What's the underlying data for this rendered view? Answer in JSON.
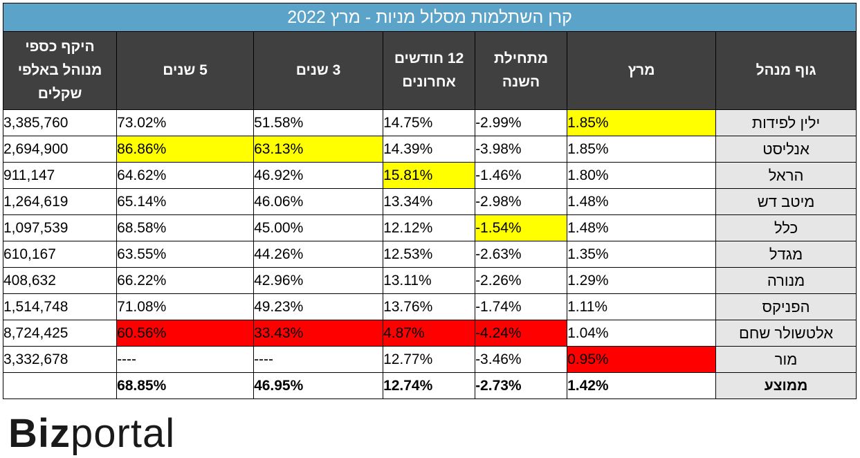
{
  "table": {
    "title": "קרן השתלמות מסלול מניות - מרץ 2022",
    "headers": {
      "manager": "גוף מנהל",
      "march": "מרץ",
      "ytd": "מתחילת השנה",
      "m12": "12 חודשים אחרונים",
      "y3": "3 שנים",
      "y5": "5 שנים",
      "aum": "היקף כספי מנוהל באלפי שקלים"
    },
    "rows": [
      {
        "manager": "ילין לפידות",
        "march": "1.85%",
        "ytd": "-2.99%",
        "m12": "14.75%",
        "y3": "51.58%",
        "y5": "73.02%",
        "aum": "3,385,760"
      },
      {
        "manager": "אנליסט",
        "march": "1.85%",
        "ytd": "-3.98%",
        "m12": "14.39%",
        "y3": "63.13%",
        "y5": "86.86%",
        "aum": "2,694,900"
      },
      {
        "manager": "הראל",
        "march": "1.80%",
        "ytd": "-1.46%",
        "m12": "15.81%",
        "y3": "46.92%",
        "y5": "64.62%",
        "aum": "911,147"
      },
      {
        "manager": "מיטב דש",
        "march": "1.48%",
        "ytd": "-2.98%",
        "m12": "13.34%",
        "y3": "46.06%",
        "y5": "65.14%",
        "aum": "1,264,619"
      },
      {
        "manager": "כלל",
        "march": "1.48%",
        "ytd": "-1.54%",
        "m12": "12.12%",
        "y3": "45.00%",
        "y5": "68.58%",
        "aum": "1,097,539"
      },
      {
        "manager": "מגדל",
        "march": "1.35%",
        "ytd": "-2.63%",
        "m12": "12.53%",
        "y3": "44.26%",
        "y5": "63.55%",
        "aum": "610,167"
      },
      {
        "manager": "מנורה",
        "march": "1.29%",
        "ytd": "-2.26%",
        "m12": "13.11%",
        "y3": "42.96%",
        "y5": "66.22%",
        "aum": "408,632"
      },
      {
        "manager": "הפניקס",
        "march": "1.11%",
        "ytd": "-1.74%",
        "m12": "13.76%",
        "y3": "49.23%",
        "y5": "71.08%",
        "aum": "1,514,748"
      },
      {
        "manager": "אלטשולר שחם",
        "march": "1.04%",
        "ytd": "-4.24%",
        "m12": "4.87%",
        "y3": "33.43%",
        "y5": "60.56%",
        "aum": "8,724,425"
      },
      {
        "manager": "מור",
        "march": "0.95%",
        "ytd": "-3.46%",
        "m12": "12.77%",
        "y3": "----",
        "y5": "----",
        "aum": "3,332,678"
      }
    ],
    "average": {
      "manager": "ממוצע",
      "march": "1.42%",
      "ytd": "-2.73%",
      "m12": "12.74%",
      "y3": "46.95%",
      "y5": "68.85%",
      "aum": ""
    }
  },
  "colors": {
    "title_bg": "#5ba3c9",
    "header_bg": "#404040",
    "name_bg": "#e6e6e6",
    "best": "#ffff00",
    "worst": "#ff0000"
  },
  "logo": {
    "part1": "Biz",
    "part2": "portal"
  }
}
